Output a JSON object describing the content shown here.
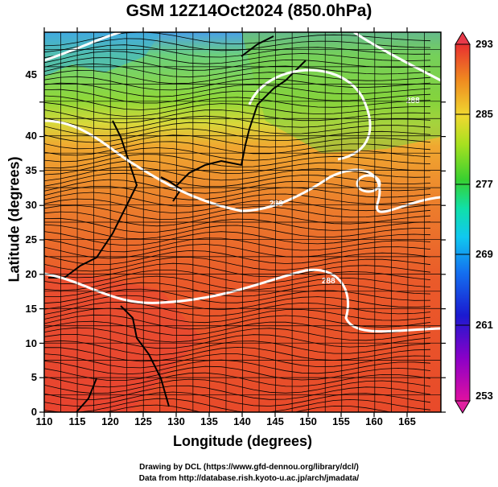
{
  "title": "GSM 12Z14Oct2024 (850.0hPa)",
  "x_axis": {
    "label": "Longitude (degrees)",
    "ticks": [
      "110",
      "115",
      "120",
      "125",
      "130",
      "135",
      "140",
      "145",
      "150",
      "155",
      "160",
      "165"
    ]
  },
  "y_axis": {
    "label": "Latitude  (degrees)",
    "ticks": [
      "0",
      "5",
      "10",
      "15",
      "20",
      "25",
      "30",
      "35",
      "40",
      "45"
    ]
  },
  "colorbar": {
    "ticks": [
      "253",
      "261",
      "269",
      "277",
      "285",
      "293"
    ],
    "colors": [
      "#e0109a",
      "#6a00c8",
      "#1a1ad8",
      "#1470f0",
      "#12c0f0",
      "#10e0b0",
      "#30d030",
      "#a0e018",
      "#e8e030",
      "#f5a020",
      "#f07020",
      "#e83030"
    ]
  },
  "footer": {
    "line1": "Drawing by DCL (https://www.gfd-dennou.org/library/dcl/)",
    "line2": "Data from http://database.rish.kyoto-u.ac.jp/arch/jmadata/"
  },
  "contour_labels": [
    "288",
    "288",
    "288"
  ]
}
